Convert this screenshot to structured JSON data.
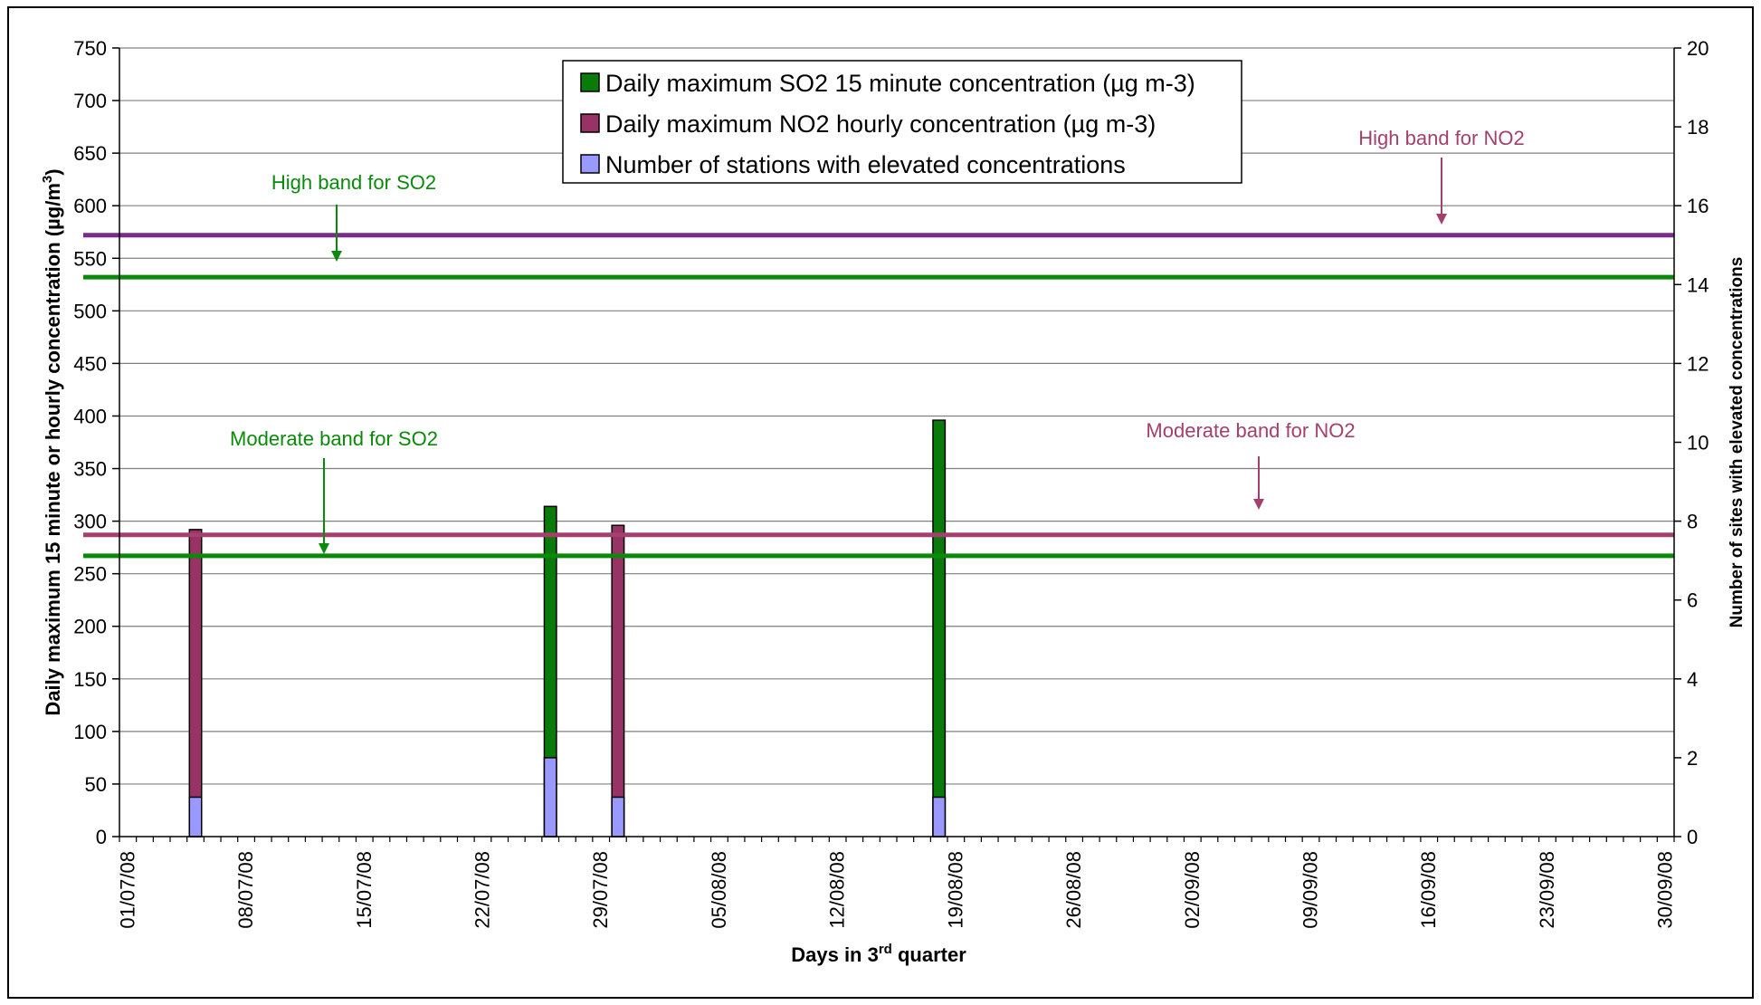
{
  "chart_data": {
    "type": "bar",
    "x_dates": [
      "01/07/08",
      "02/07/08",
      "03/07/08",
      "04/07/08",
      "05/07/08",
      "06/07/08",
      "07/07/08",
      "08/07/08",
      "09/07/08",
      "10/07/08",
      "11/07/08",
      "12/07/08",
      "13/07/08",
      "14/07/08",
      "15/07/08",
      "16/07/08",
      "17/07/08",
      "18/07/08",
      "19/07/08",
      "20/07/08",
      "21/07/08",
      "22/07/08",
      "23/07/08",
      "24/07/08",
      "25/07/08",
      "26/07/08",
      "27/07/08",
      "28/07/08",
      "29/07/08",
      "30/07/08",
      "31/07/08",
      "01/08/08",
      "02/08/08",
      "03/08/08",
      "04/08/08",
      "05/08/08",
      "06/08/08",
      "07/08/08",
      "08/08/08",
      "09/08/08",
      "10/08/08",
      "11/08/08",
      "12/08/08",
      "13/08/08",
      "14/08/08",
      "15/08/08",
      "16/08/08",
      "17/08/08",
      "18/08/08",
      "19/08/08",
      "20/08/08",
      "21/08/08",
      "22/08/08",
      "23/08/08",
      "24/08/08",
      "25/08/08",
      "26/08/08",
      "27/08/08",
      "28/08/08",
      "29/08/08",
      "30/08/08",
      "31/08/08",
      "01/09/08",
      "02/09/08",
      "03/09/08",
      "04/09/08",
      "05/09/08",
      "06/09/08",
      "07/09/08",
      "08/09/08",
      "09/09/08",
      "10/09/08",
      "11/09/08",
      "12/09/08",
      "13/09/08",
      "14/09/08",
      "15/09/08",
      "16/09/08",
      "17/09/08",
      "18/09/08",
      "19/09/08",
      "20/09/08",
      "21/09/08",
      "22/09/08",
      "23/09/08",
      "24/09/08",
      "25/09/08",
      "26/09/08",
      "27/09/08",
      "28/09/08",
      "29/09/08",
      "30/09/08"
    ],
    "x_tick_labels": [
      "01/07/08",
      "08/07/08",
      "15/07/08",
      "22/07/08",
      "29/07/08",
      "05/08/08",
      "12/08/08",
      "19/08/08",
      "26/08/08",
      "02/09/08",
      "09/09/08",
      "16/09/08",
      "23/09/08",
      "30/09/08"
    ],
    "xlabel_main": "Days in 3",
    "xlabel_sup": "rd",
    "xlabel_end": " quarter",
    "ylabel_left_main": "Daily maximum 15 minute or hourly concentration (µg/m",
    "ylabel_left_sup": "3",
    "ylabel_left_end": ")",
    "ylabel_right": "Number of sites with elevated concentrations",
    "ylim_left": [
      0,
      750
    ],
    "yticks_left": [
      "0",
      "50",
      "100",
      "150",
      "200",
      "250",
      "300",
      "350",
      "400",
      "450",
      "500",
      "550",
      "600",
      "650",
      "700",
      "750"
    ],
    "ylim_right": [
      0,
      20
    ],
    "yticks_right": [
      "0",
      "2",
      "4",
      "6",
      "8",
      "10",
      "12",
      "14",
      "16",
      "18",
      "20"
    ],
    "series": [
      {
        "name": "Daily maximum SO2 15 minute concentration (µg m-3)",
        "color": "#0a7a0a",
        "axis": "left",
        "points": [
          {
            "date": "26/07/08",
            "value": 314
          },
          {
            "date": "18/08/08",
            "value": 396
          }
        ]
      },
      {
        "name": "Daily maximum NO2 hourly concentration (µg m-3)",
        "color": "#993366",
        "axis": "left",
        "points": [
          {
            "date": "05/07/08",
            "value": 292
          },
          {
            "date": "30/07/08",
            "value": 296
          }
        ]
      },
      {
        "name": "Number of stations with elevated concentrations",
        "color": "#9999ff",
        "axis": "right",
        "points": [
          {
            "date": "05/07/08",
            "value": 1
          },
          {
            "date": "26/07/08",
            "value": 2
          },
          {
            "date": "30/07/08",
            "value": 1
          },
          {
            "date": "18/08/08",
            "value": 1
          }
        ]
      }
    ],
    "bands": [
      {
        "label": "High band for NO2",
        "value": 572,
        "color": "#7b2a8a"
      },
      {
        "label": "High band for SO2",
        "value": 532,
        "color": "#0a8a0a"
      },
      {
        "label": "Moderate band for NO2",
        "value": 287,
        "color": "#a3406e"
      },
      {
        "label": "Moderate band for SO2",
        "value": 267,
        "color": "#0a8a0a"
      }
    ],
    "legend_position": "top-center",
    "grid": true
  }
}
